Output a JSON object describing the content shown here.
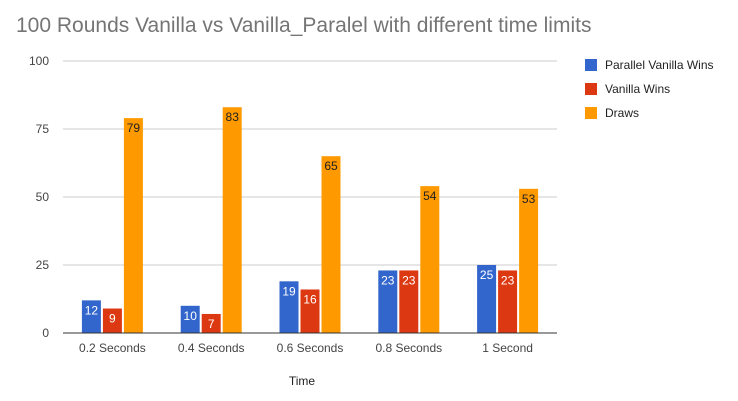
{
  "chart_data": {
    "type": "bar",
    "title": "100 Rounds Vanilla vs Vanilla_Paralel with different time limits",
    "xlabel": "Time",
    "ylabel": "",
    "ylim": [
      0,
      100
    ],
    "yticks": [
      "0",
      "25",
      "50",
      "75",
      "100"
    ],
    "grid": true,
    "legend_position": "right",
    "categories": [
      "0.2 Seconds",
      "0.4 Seconds",
      "0.6 Seconds",
      "0.8 Seconds",
      "1 Second"
    ],
    "series": [
      {
        "name": "Parallel Vanilla Wins",
        "color": "#3366cc",
        "values": [
          12,
          10,
          19,
          23,
          25
        ]
      },
      {
        "name": "Vanilla Wins",
        "color": "#dc3912",
        "values": [
          9,
          7,
          16,
          23,
          23
        ]
      },
      {
        "name": "Draws",
        "color": "#ff9900",
        "values": [
          79,
          83,
          65,
          54,
          53
        ]
      }
    ]
  }
}
